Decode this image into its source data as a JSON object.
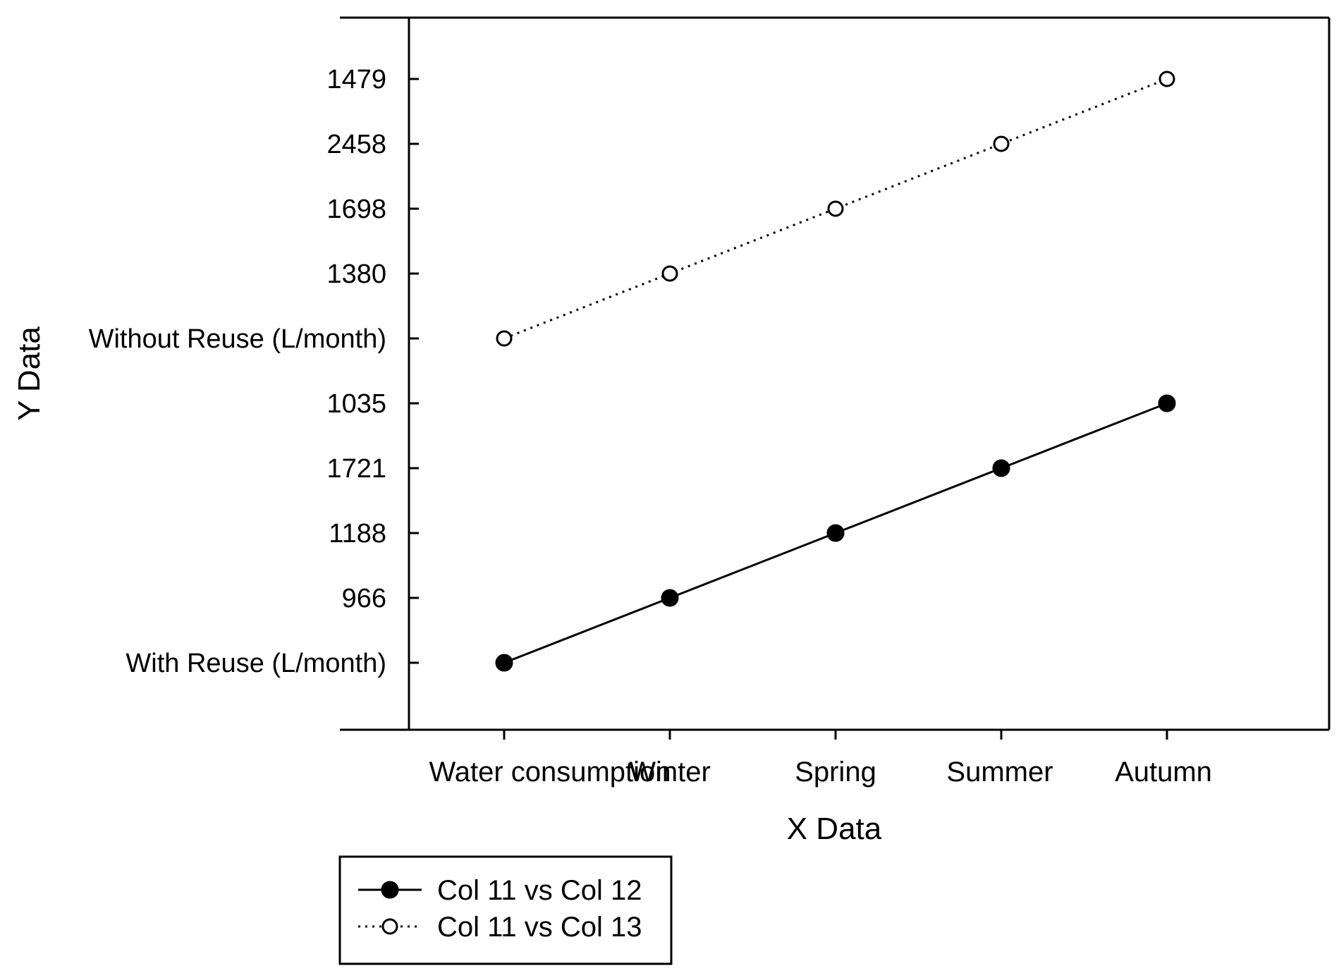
{
  "chart_data": {
    "type": "line",
    "title": "",
    "xlabel": "X Data",
    "ylabel": "Y Data",
    "categories": [
      "Water consumption",
      "Winter",
      "Spring",
      "Summer",
      "Autumn"
    ],
    "y_tick_labels": [
      "With Reuse  (L/month)",
      "966",
      "1188",
      "1721",
      "1035",
      "Without Reuse  (L/month)",
      "1380",
      "1698",
      "2458",
      "1479"
    ],
    "x_tick_positions": [
      1,
      2,
      3,
      4,
      5
    ],
    "xlim": [
      0.5,
      6.0
    ],
    "ylim": [
      0,
      11
    ],
    "grid": false,
    "legend_position": "bottom-left",
    "series": [
      {
        "name": "Col 11 vs Col 12",
        "marker": "filled-circle",
        "line_style": "solid",
        "x": [
          1,
          2,
          3,
          4,
          5
        ],
        "values": [
          1,
          2,
          3,
          4,
          5
        ]
      },
      {
        "name": "Col 11 vs Col 13",
        "marker": "open-circle",
        "line_style": "dotted",
        "x": [
          1,
          2,
          3,
          4,
          5
        ],
        "values": [
          6,
          7,
          8,
          9,
          10
        ]
      }
    ],
    "colors": {
      "line": "#000000",
      "background": "#ffffff"
    }
  }
}
